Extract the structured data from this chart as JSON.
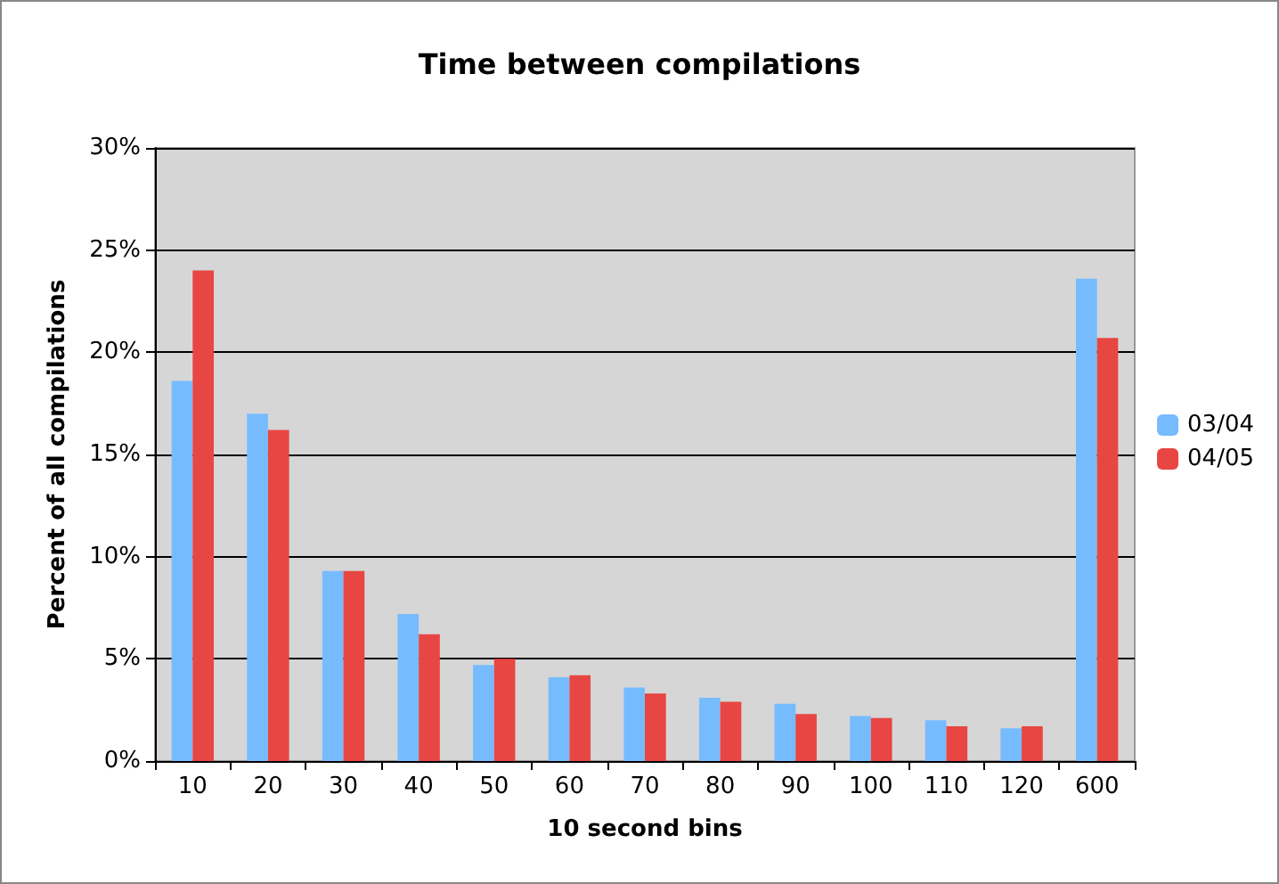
{
  "chart_data": {
    "type": "bar",
    "title": "Time between compilations",
    "xlabel": "10 second bins",
    "ylabel": "Percent of all compilations",
    "categories": [
      "10",
      "20",
      "30",
      "40",
      "50",
      "60",
      "70",
      "80",
      "90",
      "100",
      "110",
      "120",
      "600"
    ],
    "series": [
      {
        "name": "03/04",
        "color": "#77bbff",
        "values": [
          18.6,
          17.0,
          9.3,
          7.2,
          4.7,
          4.1,
          3.6,
          3.1,
          2.8,
          2.2,
          2.0,
          1.6,
          23.6
        ]
      },
      {
        "name": "04/05",
        "color": "#e84642",
        "values": [
          24.0,
          16.2,
          9.3,
          6.2,
          5.0,
          4.2,
          3.3,
          2.9,
          2.3,
          2.1,
          1.7,
          1.7,
          20.7
        ]
      }
    ],
    "ylim": [
      0,
      30
    ],
    "yticks": [
      {
        "value": 0,
        "label": "0%"
      },
      {
        "value": 5,
        "label": "5%"
      },
      {
        "value": 10,
        "label": "10%"
      },
      {
        "value": 15,
        "label": "15%"
      },
      {
        "value": 20,
        "label": "20%"
      },
      {
        "value": 25,
        "label": "25%"
      },
      {
        "value": 30,
        "label": "30%"
      }
    ],
    "grid": "y",
    "legend": "right"
  }
}
